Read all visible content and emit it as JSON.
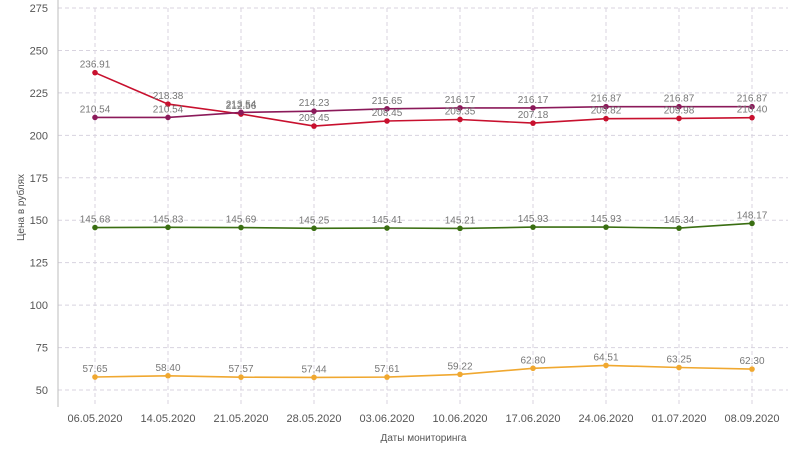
{
  "chart_data": {
    "type": "line",
    "title": "",
    "xlabel": "Даты мониторинга",
    "ylabel": "Цена в рублях",
    "ylim": [
      40,
      275
    ],
    "yticks": [
      50,
      75,
      100,
      125,
      150,
      175,
      200,
      225,
      250,
      275
    ],
    "grid": true,
    "x": [
      "06.05.2020",
      "14.05.2020",
      "21.05.2020",
      "28.05.2020",
      "03.06.2020",
      "10.06.2020",
      "17.06.2020",
      "24.06.2020",
      "01.07.2020",
      "08.09.2020"
    ],
    "series": [
      {
        "color": "#c8102e",
        "values": [
          236.91,
          218.38,
          212.56,
          205.45,
          208.45,
          209.35,
          207.18,
          209.82,
          209.98,
          210.4
        ]
      },
      {
        "color": "#8b1a5a",
        "values": [
          210.54,
          210.54,
          213.54,
          214.23,
          215.65,
          216.17,
          216.17,
          216.87,
          216.87,
          216.87
        ]
      },
      {
        "color": "#3a6e12",
        "values": [
          145.68,
          145.83,
          145.69,
          145.25,
          145.41,
          145.21,
          145.93,
          145.93,
          145.34,
          148.17
        ]
      },
      {
        "color": "#f0a830",
        "values": [
          57.65,
          58.4,
          57.57,
          57.44,
          57.61,
          59.22,
          62.8,
          64.51,
          63.25,
          62.3
        ]
      }
    ]
  }
}
